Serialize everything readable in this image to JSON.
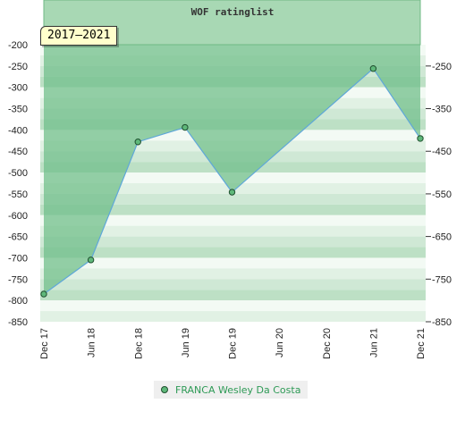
{
  "chart_data": {
    "type": "line",
    "title": "WOF ratinglist",
    "period_badge": "2017–2021",
    "x_categories": [
      "Dec 17",
      "Jun 18",
      "Dec 18",
      "Jun 19",
      "Dec 19",
      "Jun 20",
      "Dec 20",
      "Jun 21",
      "Dec 21"
    ],
    "series": [
      {
        "name": "FRANCA Wesley Da Costa",
        "color": "#5fa7d9",
        "marker_color": "#5fb87a",
        "points": [
          {
            "x": "Dec 17",
            "y": -785
          },
          {
            "x": "Jun 18",
            "y": -705
          },
          {
            "x": "Dec 18",
            "y": -428
          },
          {
            "x": "Jun 19",
            "y": -394
          },
          {
            "x": "Dec 19",
            "y": -546
          },
          {
            "x": "Jun 21",
            "y": -256
          },
          {
            "x": "Dec 21",
            "y": -420
          }
        ]
      }
    ],
    "ylim": [
      -850,
      -200
    ],
    "yticks_left": [
      -200,
      -250,
      -300,
      -350,
      -400,
      -450,
      -500,
      -550,
      -600,
      -650,
      -700,
      -750,
      -800,
      -850
    ],
    "yticks_right": [
      -250,
      -350,
      -450,
      -550,
      -650,
      -750,
      -850
    ],
    "legend_placement": "bottom-center",
    "grid": true
  }
}
